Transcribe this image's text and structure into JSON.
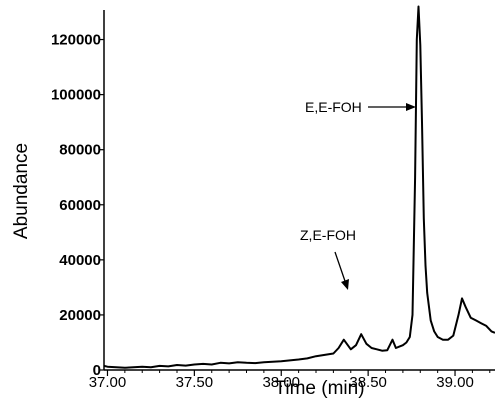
{
  "chart_data": {
    "type": "line",
    "title": "",
    "xlabel": "Time (min)",
    "ylabel": "Abundance",
    "xlim": [
      36.98,
      39.23
    ],
    "ylim": [
      0,
      130000
    ],
    "x_ticks": [
      37.0,
      37.5,
      38.0,
      38.5,
      39.0
    ],
    "x_tick_labels": [
      "37.00",
      "37.50",
      "38.00",
      "38.50",
      "39.00"
    ],
    "y_ticks": [
      0,
      20000,
      40000,
      60000,
      80000,
      100000,
      120000
    ],
    "y_tick_labels": [
      "0",
      "20000",
      "40000",
      "60000",
      "80000",
      "100000",
      "120000"
    ],
    "grid": false,
    "series": [
      {
        "x": [
          36.98,
          37.0,
          37.05,
          37.1,
          37.15,
          37.2,
          37.25,
          37.3,
          37.35,
          37.4,
          37.45,
          37.5,
          37.55,
          37.6,
          37.65,
          37.7,
          37.75,
          37.8,
          37.85,
          37.9,
          37.95,
          38.0,
          38.05,
          38.1,
          38.15,
          38.2,
          38.25,
          38.3,
          38.33,
          38.36,
          38.4,
          38.43,
          38.46,
          38.49,
          38.52,
          38.55,
          38.58,
          38.61,
          38.64,
          38.66,
          38.68,
          38.7,
          38.72,
          38.74,
          38.755,
          38.77,
          38.78,
          38.79,
          38.8,
          38.81,
          38.82,
          38.83,
          38.84,
          38.86,
          38.88,
          38.9,
          38.93,
          38.96,
          38.99,
          39.02,
          39.04,
          39.06,
          39.09,
          39.12,
          39.15,
          39.18,
          39.21,
          39.23
        ],
        "y": [
          1500,
          1200,
          1000,
          800,
          1000,
          1200,
          1000,
          1500,
          1300,
          1800,
          1600,
          2000,
          2200,
          2000,
          2600,
          2400,
          2800,
          2600,
          2500,
          2800,
          3000,
          3200,
          3500,
          3800,
          4200,
          5000,
          5500,
          6000,
          8000,
          11000,
          7500,
          9000,
          13000,
          9500,
          8000,
          7500,
          7000,
          7200,
          11000,
          8000,
          8500,
          9000,
          10000,
          12000,
          20000,
          70000,
          120000,
          132000,
          118000,
          90000,
          55000,
          38000,
          28000,
          18000,
          14000,
          12000,
          11000,
          11000,
          12500,
          20000,
          26000,
          23000,
          19000,
          18000,
          17000,
          16000,
          14000,
          13500
        ]
      }
    ],
    "annotations": [
      {
        "text": "E,E-FOH",
        "x": 38.78,
        "y": 110000
      },
      {
        "text": "Z,E-FOH",
        "x": 38.36,
        "y": 11000
      }
    ]
  }
}
